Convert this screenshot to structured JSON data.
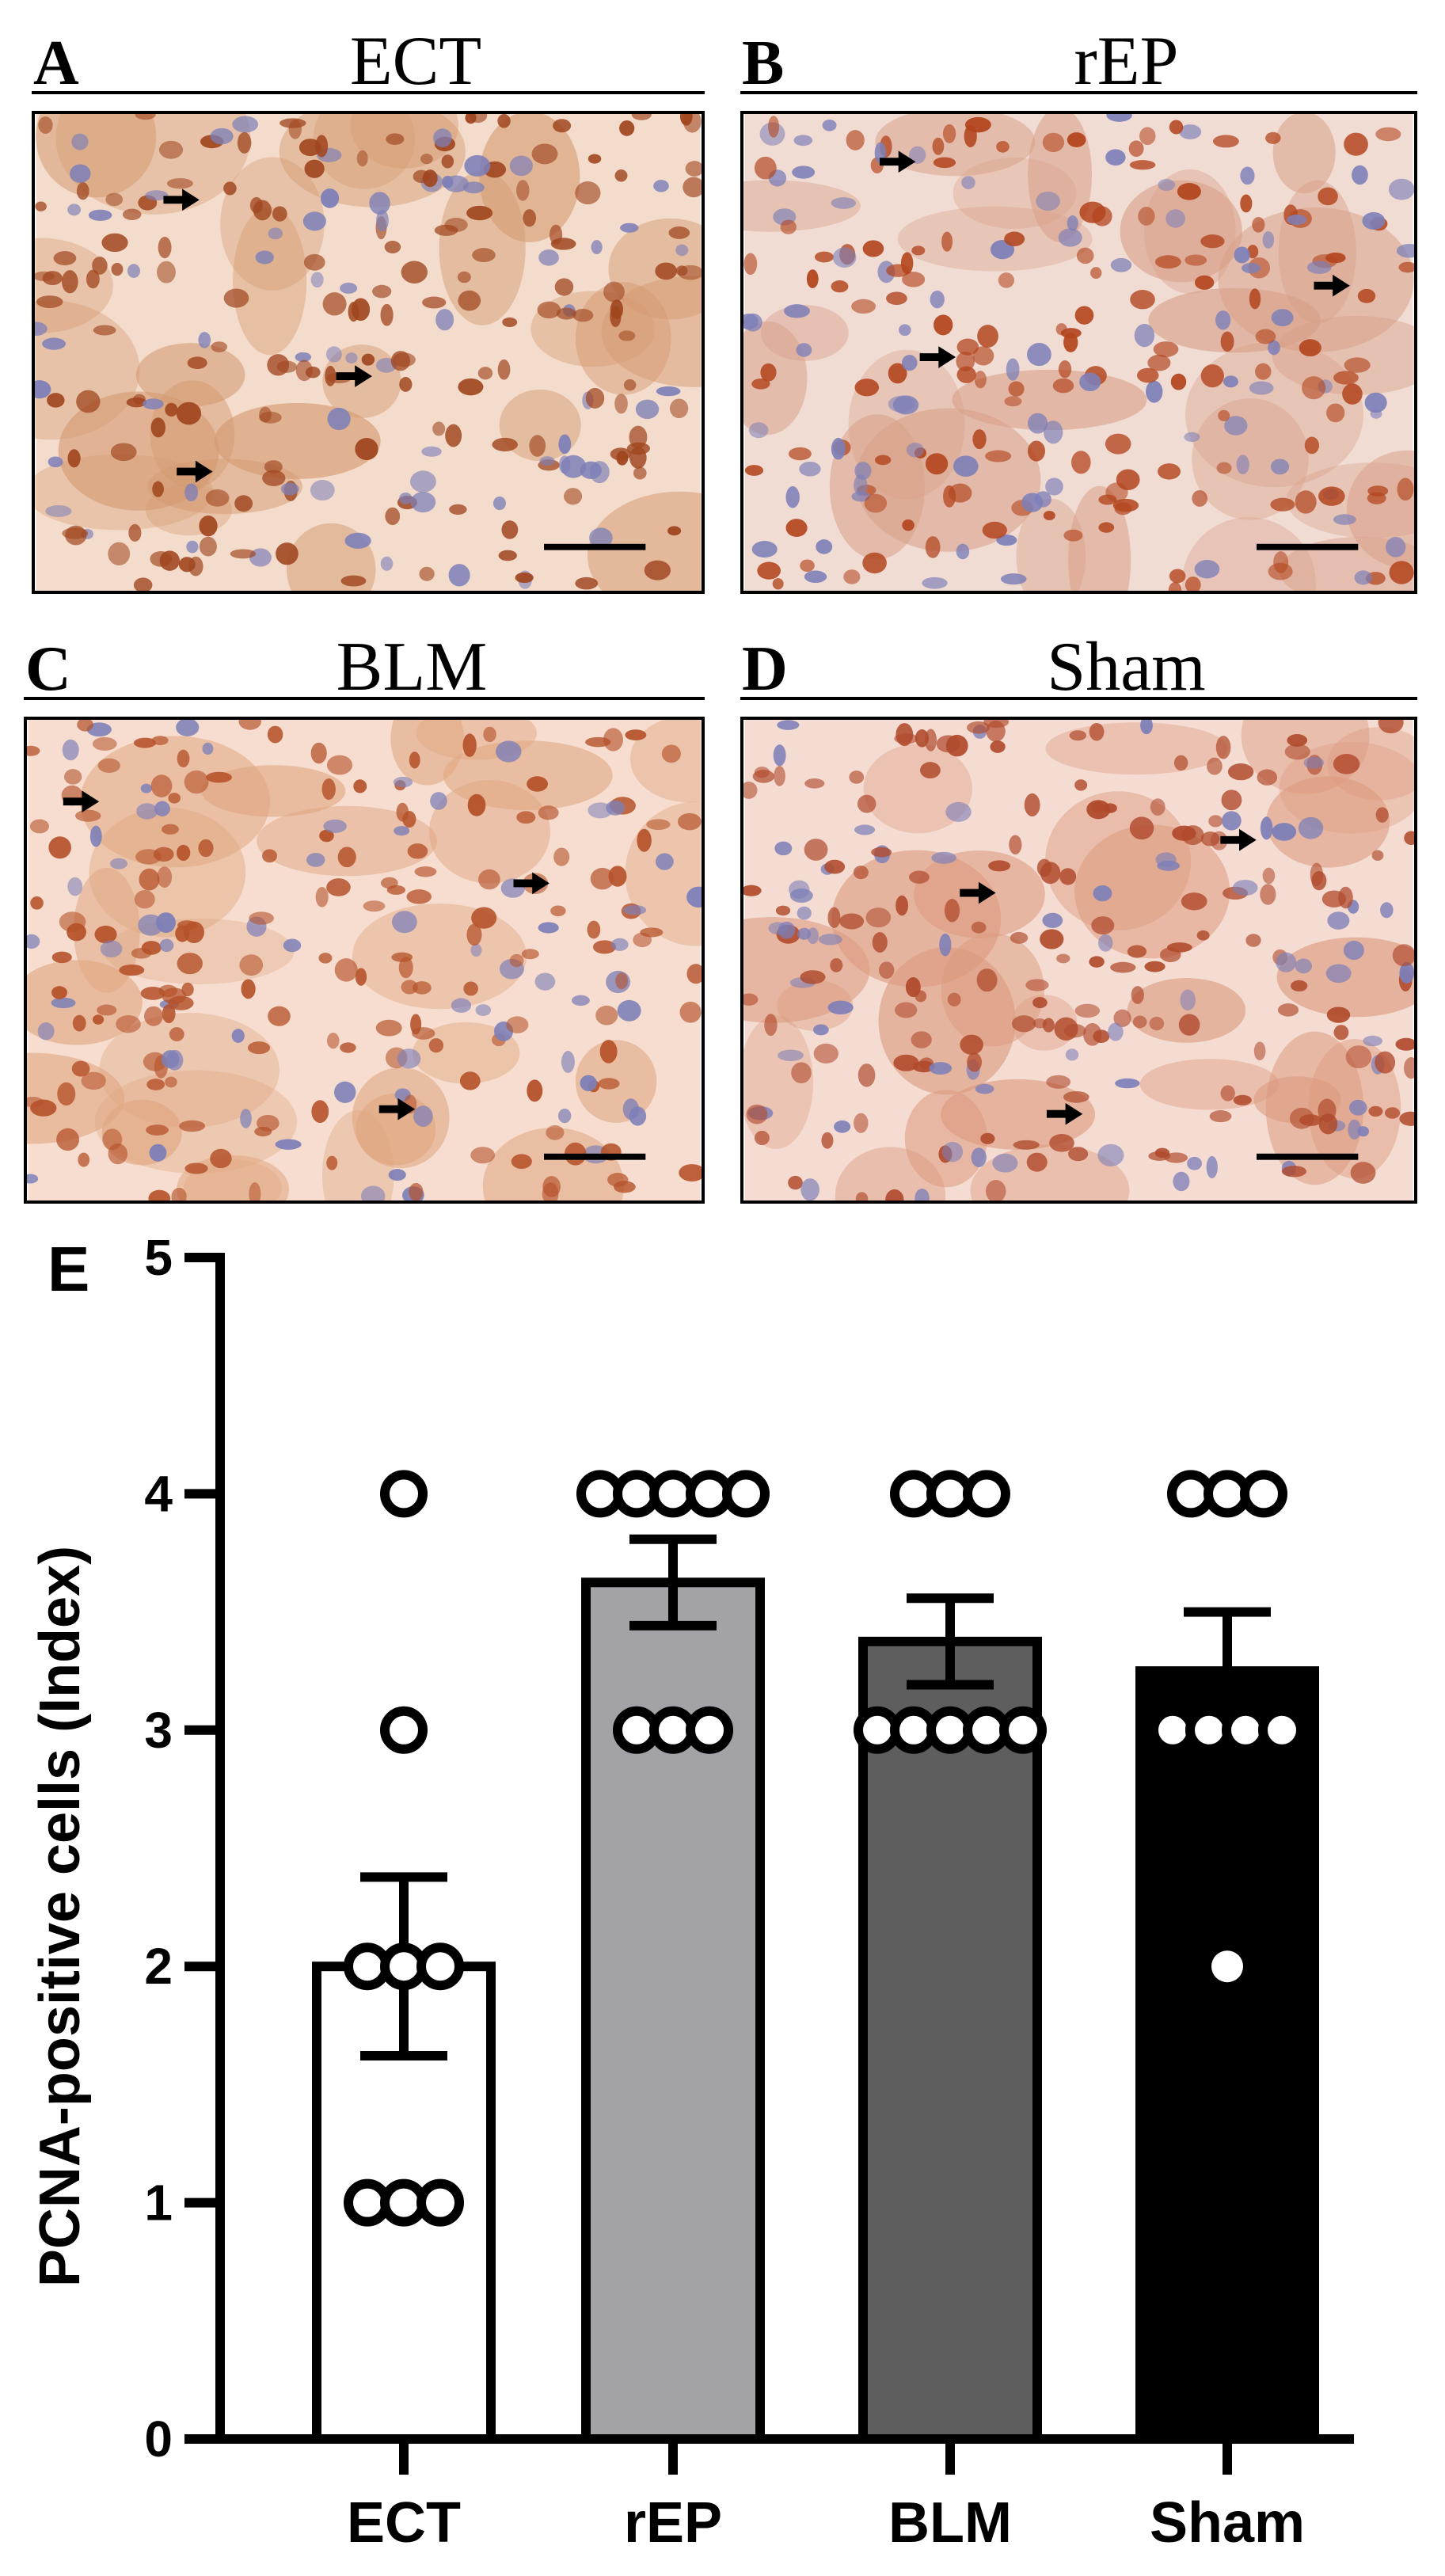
{
  "panels": [
    {
      "letter": "A",
      "title": "ECT",
      "tint": "#d49a70",
      "nucleus": "#a0461f",
      "bg": "#f4dccc"
    },
    {
      "letter": "B",
      "title": "rEP",
      "tint": "#d8a088",
      "nucleus": "#b3461f",
      "bg": "#f1dcd4"
    },
    {
      "letter": "C",
      "title": "BLM",
      "tint": "#e0a680",
      "nucleus": "#b5522a",
      "bg": "#f6ddcf"
    },
    {
      "letter": "D",
      "title": "Sham",
      "tint": "#dc9a7e",
      "nucleus": "#b04a2c",
      "bg": "#f5dcd2"
    }
  ],
  "chart_panel_letter": "E",
  "chart_data": {
    "type": "bar",
    "categories": [
      "ECT",
      "rEP",
      "BLM",
      "Sham"
    ],
    "values": [
      2.0,
      3.625,
      3.375,
      3.25
    ],
    "errors": [
      0.378,
      0.183,
      0.183,
      0.25
    ],
    "bar_colors": [
      "#ffffff",
      "#a3a2a6",
      "#5e5e5e",
      "#000000"
    ],
    "point_fill": [
      "#ffffff",
      "#ffffff",
      "#ffffff",
      "#ffffff"
    ],
    "points": [
      [
        4,
        3,
        2,
        2,
        2,
        1,
        1,
        1
      ],
      [
        4,
        4,
        4,
        4,
        4,
        3,
        3,
        3
      ],
      [
        4,
        4,
        4,
        3,
        3,
        3,
        3,
        3
      ],
      [
        4,
        4,
        4,
        3,
        3,
        3,
        3,
        2
      ]
    ],
    "ylabel": "PCNA-positive cells (Index)",
    "ylim": [
      0,
      5
    ],
    "yticks": [
      0,
      1,
      2,
      3,
      4,
      5
    ],
    "grid": false
  }
}
